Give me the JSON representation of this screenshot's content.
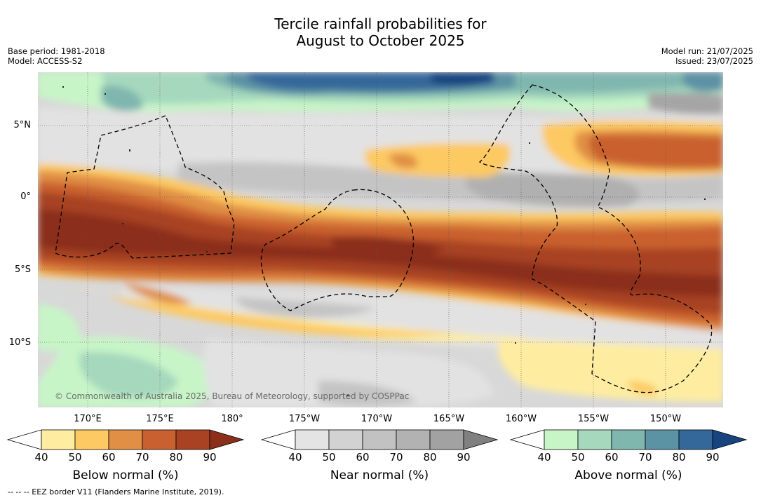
{
  "title_line1": "Tercile rainfall probabilities for",
  "title_line2": "August to October 2025",
  "base_period": "Base period: 1981-2018",
  "model": "Model: ACCESS-S2",
  "model_run": "Model run: 21/07/2025",
  "issued": "Issued: 23/07/2025",
  "lat_labels": [
    "5°N",
    "0°",
    "5°S",
    "10°S"
  ],
  "lon_labels": [
    "170°E",
    "175°E",
    "180°",
    "175°W",
    "170°W",
    "165°W",
    "160°W",
    "155°W",
    "150°W"
  ],
  "copyright": "© Commonwealth of Australia 2025, Bureau of Meteorology, supported by COSPPac",
  "footnote": "--  --  -- EEZ border V11 (Flanders Marine Institute, 2019).",
  "colorbars": [
    {
      "label": "Below normal (%)",
      "ticks": [
        "40",
        "50",
        "60",
        "70",
        "80",
        "90"
      ],
      "colors": [
        "#ffffff",
        "#feeda0",
        "#fdc962",
        "#e08f45",
        "#c9602f",
        "#a84222",
        "#8b2e1a"
      ]
    },
    {
      "label": "Near normal (%)",
      "ticks": [
        "40",
        "50",
        "60",
        "70",
        "80",
        "90"
      ],
      "colors": [
        "#ffffff",
        "#e4e4e4",
        "#d2d2d2",
        "#c2c2c2",
        "#b2b2b2",
        "#a2a2a2",
        "#808080"
      ]
    },
    {
      "label": "Above normal (%)",
      "ticks": [
        "40",
        "50",
        "60",
        "70",
        "80",
        "90"
      ],
      "colors": [
        "#ffffff",
        "#c8f5c8",
        "#a5d8bd",
        "#7fb6ae",
        "#5b92a4",
        "#34679a",
        "#17447f"
      ]
    }
  ]
}
